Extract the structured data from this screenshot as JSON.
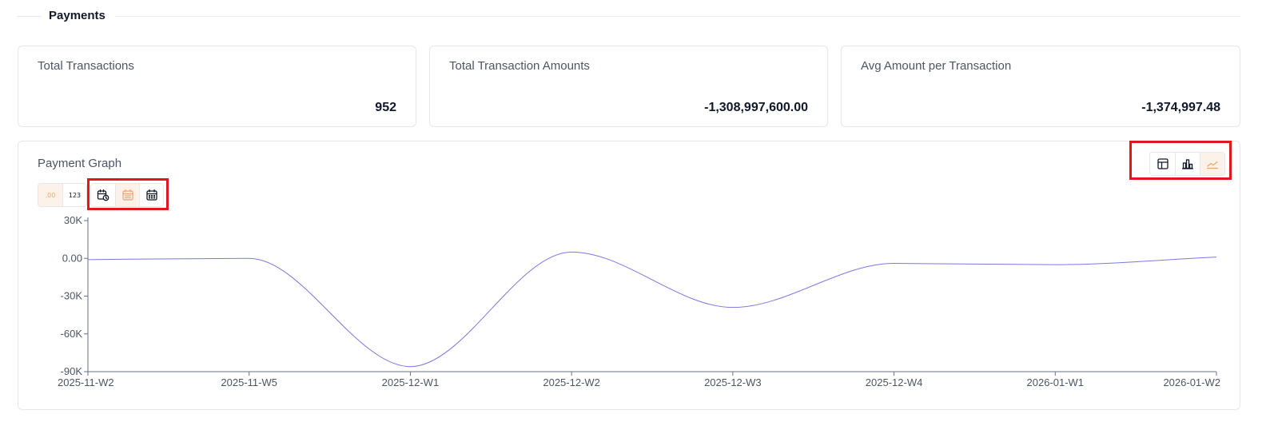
{
  "section": {
    "title": "Payments"
  },
  "cards": [
    {
      "label": "Total Transactions",
      "value": "952"
    },
    {
      "label": "Total Transaction Amounts",
      "value": "-1,308,997,600.00"
    },
    {
      "label": "Avg Amount per Transaction",
      "value": "-1,374,997.48"
    }
  ],
  "graph": {
    "title": "Payment Graph",
    "format_toggle": [
      {
        "label": ".00",
        "active": true
      },
      {
        "label": "123",
        "active": false
      }
    ],
    "period_toggle": [
      {
        "icon": "calendar-clock-icon",
        "active": false
      },
      {
        "icon": "calendar-icon",
        "active": true
      },
      {
        "icon": "calendar-grid-icon",
        "active": false
      }
    ],
    "view_toggle": [
      {
        "icon": "table-icon",
        "active": false
      },
      {
        "icon": "bar-chart-icon",
        "active": false
      },
      {
        "icon": "line-chart-icon",
        "active": true
      }
    ],
    "accent_color": "#f0a36d",
    "line_color": "#7b78e0",
    "highlight_color": "#e3161f"
  },
  "chart_data": {
    "type": "line",
    "title": "",
    "xlabel": "",
    "ylabel": "",
    "categories": [
      "2025-11-W2",
      "2025-11-W5",
      "2025-12-W1",
      "2025-12-W2",
      "2025-12-W3",
      "2025-12-W4",
      "2026-01-W1",
      "2026-01-W2"
    ],
    "series": [
      {
        "values": [
          -1000,
          0,
          -86000,
          5000,
          -39000,
          -4000,
          -5000,
          1000
        ]
      }
    ],
    "yticks": [
      30000,
      0,
      -30000,
      -60000,
      -90000
    ],
    "ytick_labels": [
      "30K",
      "0.00",
      "-30K",
      "-60K",
      "-90K"
    ],
    "ylim": [
      -90000,
      30000
    ],
    "grid": false,
    "legend": "none"
  }
}
